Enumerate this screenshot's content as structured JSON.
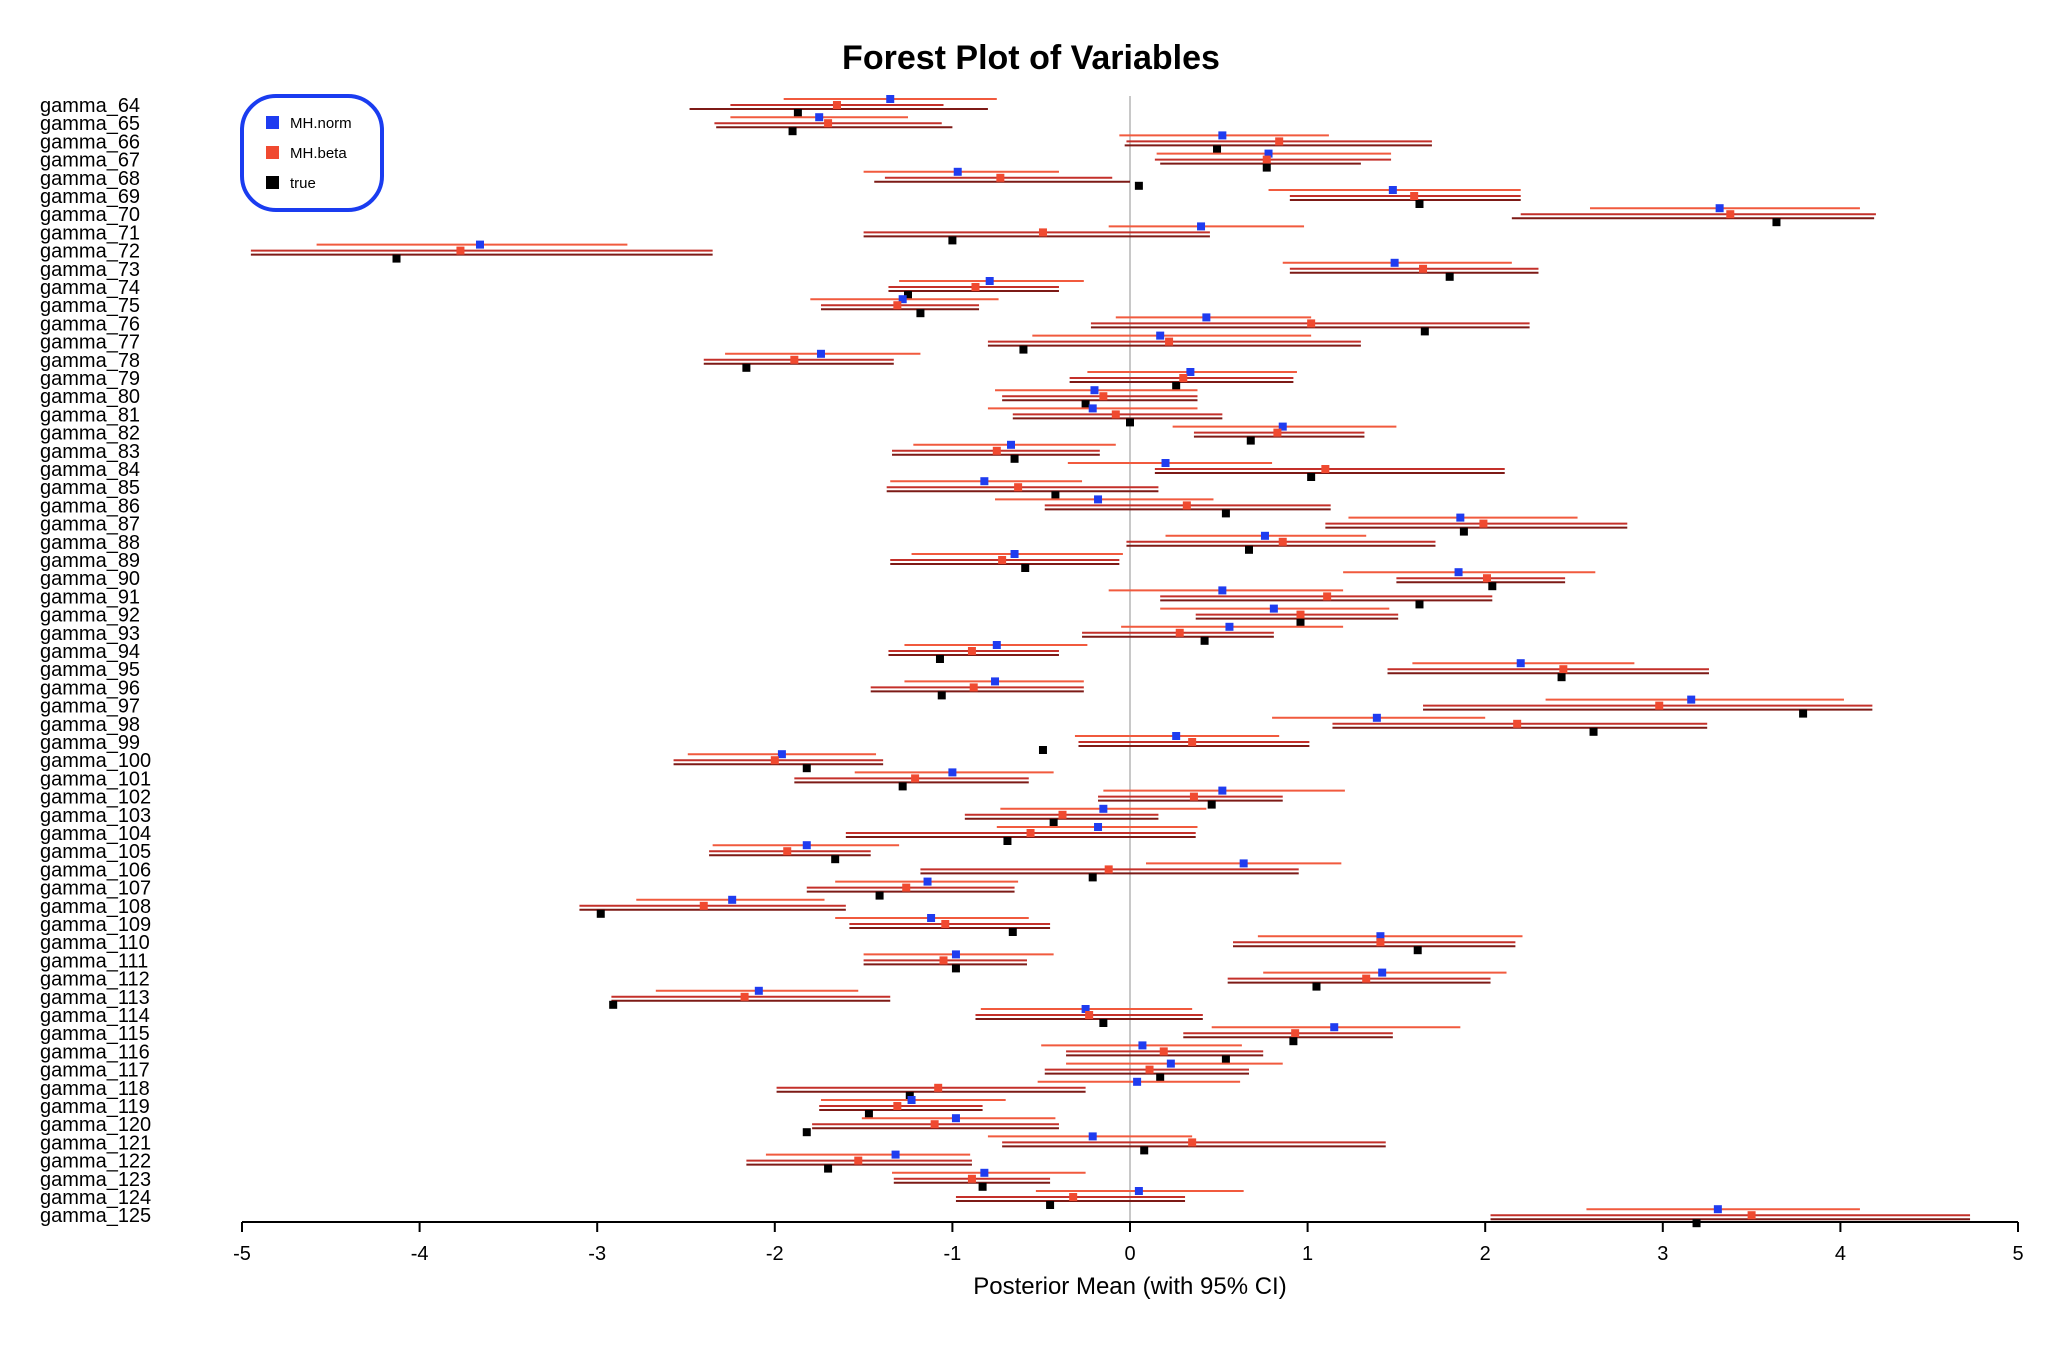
{
  "chart_data": {
    "type": "forest",
    "title": "Forest Plot of Variables",
    "xlabel": "Posterior Mean (with 95% CI)",
    "ylabel": "",
    "xlim": [
      -5,
      5
    ],
    "xticks": [
      -5,
      -4,
      -3,
      -2,
      -1,
      0,
      1,
      2,
      3,
      4,
      5
    ],
    "reference_line": 0,
    "legend_position": "top-left",
    "series": [
      {
        "name": "MH.norm",
        "color": "#1f3cf0"
      },
      {
        "name": "MH.beta",
        "color": "#f04a30"
      },
      {
        "name": "true",
        "color": "#000000"
      }
    ],
    "rows": [
      {
        "label": "gamma_64",
        "norm": -1.35,
        "norm_ci": [
          -1.95,
          -0.75
        ],
        "beta": -1.65,
        "beta_ci": [
          -2.25,
          -1.05
        ],
        "true": -1.87,
        "true_ci": [
          -2.48,
          -0.8
        ]
      },
      {
        "label": "gamma_65",
        "norm": -1.75,
        "norm_ci": [
          -2.25,
          -1.25
        ],
        "beta": -1.7,
        "beta_ci": [
          -2.34,
          -1.06
        ],
        "true": -1.9,
        "true_ci": [
          -2.33,
          -1.0
        ]
      },
      {
        "label": "gamma_66",
        "norm": 0.52,
        "norm_ci": [
          -0.06,
          1.12
        ],
        "beta": 0.84,
        "beta_ci": [
          -0.02,
          1.7
        ],
        "true": 0.49,
        "true_ci": [
          -0.03,
          1.7
        ]
      },
      {
        "label": "gamma_67",
        "norm": 0.78,
        "norm_ci": [
          0.15,
          1.47
        ],
        "beta": 0.77,
        "beta_ci": [
          0.14,
          1.47
        ],
        "true": 0.77,
        "true_ci": [
          0.17,
          1.3
        ]
      },
      {
        "label": "gamma_68",
        "norm": -0.97,
        "norm_ci": [
          -1.5,
          -0.4
        ],
        "beta": -0.73,
        "beta_ci": [
          -1.38,
          -0.1
        ],
        "true": 0.05,
        "true_ci": [
          -1.44,
          0.0
        ]
      },
      {
        "label": "gamma_69",
        "norm": 1.48,
        "norm_ci": [
          0.78,
          2.2
        ],
        "beta": 1.6,
        "beta_ci": [
          0.9,
          2.2
        ],
        "true": 1.63,
        "true_ci": [
          0.9,
          2.2
        ]
      },
      {
        "label": "gamma_70",
        "norm": 3.32,
        "norm_ci": [
          2.59,
          4.11
        ],
        "beta": 3.38,
        "beta_ci": [
          2.2,
          4.2
        ],
        "true": 3.64,
        "true_ci": [
          2.15,
          4.19
        ]
      },
      {
        "label": "gamma_71",
        "norm": 0.4,
        "norm_ci": [
          -0.12,
          0.98
        ],
        "beta": -0.49,
        "beta_ci": [
          -1.5,
          0.45
        ],
        "true": -1.0,
        "true_ci": [
          -1.5,
          0.45
        ]
      },
      {
        "label": "gamma_72",
        "norm": -3.66,
        "norm_ci": [
          -4.58,
          -2.83
        ],
        "beta": -3.77,
        "beta_ci": [
          -4.95,
          -2.35
        ],
        "true": -4.13,
        "true_ci": [
          -4.95,
          -2.35
        ]
      },
      {
        "label": "gamma_73",
        "norm": 1.49,
        "norm_ci": [
          0.86,
          2.15
        ],
        "beta": 1.65,
        "beta_ci": [
          0.9,
          2.3
        ],
        "true": 1.8,
        "true_ci": [
          0.9,
          2.3
        ]
      },
      {
        "label": "gamma_74",
        "norm": -0.79,
        "norm_ci": [
          -1.3,
          -0.26
        ],
        "beta": -0.87,
        "beta_ci": [
          -1.36,
          -0.4
        ],
        "true": -1.25,
        "true_ci": [
          -1.36,
          -0.4
        ]
      },
      {
        "label": "gamma_75",
        "norm": -1.28,
        "norm_ci": [
          -1.8,
          -0.74
        ],
        "beta": -1.31,
        "beta_ci": [
          -1.74,
          -0.85
        ],
        "true": -1.18,
        "true_ci": [
          -1.74,
          -0.85
        ]
      },
      {
        "label": "gamma_76",
        "norm": 0.43,
        "norm_ci": [
          -0.08,
          1.02
        ],
        "beta": 1.02,
        "beta_ci": [
          -0.22,
          2.25
        ],
        "true": 1.66,
        "true_ci": [
          -0.22,
          2.25
        ]
      },
      {
        "label": "gamma_77",
        "norm": 0.17,
        "norm_ci": [
          -0.55,
          1.02
        ],
        "beta": 0.22,
        "beta_ci": [
          -0.8,
          1.3
        ],
        "true": -0.6,
        "true_ci": [
          -0.8,
          1.3
        ]
      },
      {
        "label": "gamma_78",
        "norm": -1.74,
        "norm_ci": [
          -2.28,
          -1.18
        ],
        "beta": -1.89,
        "beta_ci": [
          -2.4,
          -1.33
        ],
        "true": -2.16,
        "true_ci": [
          -2.4,
          -1.33
        ]
      },
      {
        "label": "gamma_79",
        "norm": 0.34,
        "norm_ci": [
          -0.24,
          0.94
        ],
        "beta": 0.3,
        "beta_ci": [
          -0.34,
          0.92
        ],
        "true": 0.26,
        "true_ci": [
          -0.34,
          0.92
        ]
      },
      {
        "label": "gamma_80",
        "norm": -0.2,
        "norm_ci": [
          -0.76,
          0.38
        ],
        "beta": -0.15,
        "beta_ci": [
          -0.72,
          0.38
        ],
        "true": -0.25,
        "true_ci": [
          -0.72,
          0.38
        ]
      },
      {
        "label": "gamma_81",
        "norm": -0.21,
        "norm_ci": [
          -0.8,
          0.38
        ],
        "beta": -0.08,
        "beta_ci": [
          -0.66,
          0.52
        ],
        "true": 0.0,
        "true_ci": [
          -0.66,
          0.52
        ]
      },
      {
        "label": "gamma_82",
        "norm": 0.86,
        "norm_ci": [
          0.24,
          1.5
        ],
        "beta": 0.83,
        "beta_ci": [
          0.36,
          1.32
        ],
        "true": 0.68,
        "true_ci": [
          0.36,
          1.32
        ]
      },
      {
        "label": "gamma_83",
        "norm": -0.67,
        "norm_ci": [
          -1.22,
          -0.08
        ],
        "beta": -0.75,
        "beta_ci": [
          -1.34,
          -0.17
        ],
        "true": -0.65,
        "true_ci": [
          -1.34,
          -0.17
        ]
      },
      {
        "label": "gamma_84",
        "norm": 0.2,
        "norm_ci": [
          -0.35,
          0.8
        ],
        "beta": 1.1,
        "beta_ci": [
          0.14,
          2.11
        ],
        "true": 1.02,
        "true_ci": [
          0.14,
          2.11
        ]
      },
      {
        "label": "gamma_85",
        "norm": -0.82,
        "norm_ci": [
          -1.35,
          -0.27
        ],
        "beta": -0.63,
        "beta_ci": [
          -1.37,
          0.16
        ],
        "true": -0.42,
        "true_ci": [
          -1.37,
          0.16
        ]
      },
      {
        "label": "gamma_86",
        "norm": -0.18,
        "norm_ci": [
          -0.76,
          0.47
        ],
        "beta": 0.32,
        "beta_ci": [
          -0.48,
          1.13
        ],
        "true": 0.54,
        "true_ci": [
          -0.48,
          1.13
        ]
      },
      {
        "label": "gamma_87",
        "norm": 1.86,
        "norm_ci": [
          1.23,
          2.52
        ],
        "beta": 1.99,
        "beta_ci": [
          1.1,
          2.8
        ],
        "true": 1.88,
        "true_ci": [
          1.1,
          2.8
        ]
      },
      {
        "label": "gamma_88",
        "norm": 0.76,
        "norm_ci": [
          0.2,
          1.33
        ],
        "beta": 0.86,
        "beta_ci": [
          -0.02,
          1.72
        ],
        "true": 0.67,
        "true_ci": [
          -0.02,
          1.72
        ]
      },
      {
        "label": "gamma_89",
        "norm": -0.65,
        "norm_ci": [
          -1.23,
          -0.04
        ],
        "beta": -0.72,
        "beta_ci": [
          -1.35,
          -0.06
        ],
        "true": -0.59,
        "true_ci": [
          -1.35,
          -0.06
        ]
      },
      {
        "label": "gamma_90",
        "norm": 1.85,
        "norm_ci": [
          1.2,
          2.62
        ],
        "beta": 2.01,
        "beta_ci": [
          1.5,
          2.45
        ],
        "true": 2.04,
        "true_ci": [
          1.5,
          2.45
        ]
      },
      {
        "label": "gamma_91",
        "norm": 0.52,
        "norm_ci": [
          -0.12,
          1.2
        ],
        "beta": 1.11,
        "beta_ci": [
          0.17,
          2.04
        ],
        "true": 1.63,
        "true_ci": [
          0.17,
          2.04
        ]
      },
      {
        "label": "gamma_92",
        "norm": 0.81,
        "norm_ci": [
          0.17,
          1.46
        ],
        "beta": 0.96,
        "beta_ci": [
          0.37,
          1.51
        ],
        "true": 0.96,
        "true_ci": [
          0.37,
          1.51
        ]
      },
      {
        "label": "gamma_93",
        "norm": 0.56,
        "norm_ci": [
          -0.05,
          1.2
        ],
        "beta": 0.28,
        "beta_ci": [
          -0.27,
          0.81
        ],
        "true": 0.42,
        "true_ci": [
          -0.27,
          0.81
        ]
      },
      {
        "label": "gamma_94",
        "norm": -0.75,
        "norm_ci": [
          -1.27,
          -0.24
        ],
        "beta": -0.89,
        "beta_ci": [
          -1.36,
          -0.4
        ],
        "true": -1.07,
        "true_ci": [
          -1.36,
          -0.4
        ]
      },
      {
        "label": "gamma_95",
        "norm": 2.2,
        "norm_ci": [
          1.59,
          2.84
        ],
        "beta": 2.44,
        "beta_ci": [
          1.45,
          3.26
        ],
        "true": 2.43,
        "true_ci": [
          1.45,
          3.26
        ]
      },
      {
        "label": "gamma_96",
        "norm": -0.76,
        "norm_ci": [
          -1.27,
          -0.26
        ],
        "beta": -0.88,
        "beta_ci": [
          -1.46,
          -0.26
        ],
        "true": -1.06,
        "true_ci": [
          -1.46,
          -0.26
        ]
      },
      {
        "label": "gamma_97",
        "norm": 3.16,
        "norm_ci": [
          2.34,
          4.02
        ],
        "beta": 2.98,
        "beta_ci": [
          1.65,
          4.18
        ],
        "true": 3.79,
        "true_ci": [
          1.65,
          4.18
        ]
      },
      {
        "label": "gamma_98",
        "norm": 1.39,
        "norm_ci": [
          0.8,
          2.0
        ],
        "beta": 2.18,
        "beta_ci": [
          1.14,
          3.25
        ],
        "true": 2.61,
        "true_ci": [
          1.14,
          3.25
        ]
      },
      {
        "label": "gamma_99",
        "norm": 0.26,
        "norm_ci": [
          -0.31,
          0.84
        ],
        "beta": 0.35,
        "beta_ci": [
          -0.29,
          1.01
        ],
        "true": -0.49,
        "true_ci": [
          -0.29,
          1.01
        ]
      },
      {
        "label": "gamma_100",
        "norm": -1.96,
        "norm_ci": [
          -2.49,
          -1.43
        ],
        "beta": -2.0,
        "beta_ci": [
          -2.57,
          -1.39
        ],
        "true": -1.82,
        "true_ci": [
          -2.57,
          -1.39
        ]
      },
      {
        "label": "gamma_101",
        "norm": -1.0,
        "norm_ci": [
          -1.55,
          -0.43
        ],
        "beta": -1.21,
        "beta_ci": [
          -1.89,
          -0.57
        ],
        "true": -1.28,
        "true_ci": [
          -1.89,
          -0.57
        ]
      },
      {
        "label": "gamma_102",
        "norm": 0.52,
        "norm_ci": [
          -0.15,
          1.21
        ],
        "beta": 0.36,
        "beta_ci": [
          -0.18,
          0.86
        ],
        "true": 0.46,
        "true_ci": [
          -0.18,
          0.86
        ]
      },
      {
        "label": "gamma_103",
        "norm": -0.15,
        "norm_ci": [
          -0.73,
          0.43
        ],
        "beta": -0.38,
        "beta_ci": [
          -0.93,
          0.16
        ],
        "true": -0.43,
        "true_ci": [
          -0.93,
          0.16
        ]
      },
      {
        "label": "gamma_104",
        "norm": -0.18,
        "norm_ci": [
          -0.75,
          0.38
        ],
        "beta": -0.56,
        "beta_ci": [
          -1.6,
          0.37
        ],
        "true": -0.69,
        "true_ci": [
          -1.6,
          0.37
        ]
      },
      {
        "label": "gamma_105",
        "norm": -1.82,
        "norm_ci": [
          -2.35,
          -1.3
        ],
        "beta": -1.93,
        "beta_ci": [
          -2.37,
          -1.46
        ],
        "true": -1.66,
        "true_ci": [
          -2.37,
          -1.46
        ]
      },
      {
        "label": "gamma_106",
        "norm": 0.64,
        "norm_ci": [
          0.09,
          1.19
        ],
        "beta": -0.12,
        "beta_ci": [
          -1.18,
          0.95
        ],
        "true": -0.21,
        "true_ci": [
          -1.18,
          0.95
        ]
      },
      {
        "label": "gamma_107",
        "norm": -1.14,
        "norm_ci": [
          -1.66,
          -0.63
        ],
        "beta": -1.26,
        "beta_ci": [
          -1.82,
          -0.65
        ],
        "true": -1.41,
        "true_ci": [
          -1.82,
          -0.65
        ]
      },
      {
        "label": "gamma_108",
        "norm": -2.24,
        "norm_ci": [
          -2.78,
          -1.72
        ],
        "beta": -2.4,
        "beta_ci": [
          -3.1,
          -1.6
        ],
        "true": -2.98,
        "true_ci": [
          -3.1,
          -1.6
        ]
      },
      {
        "label": "gamma_109",
        "norm": -1.12,
        "norm_ci": [
          -1.66,
          -0.57
        ],
        "beta": -1.04,
        "beta_ci": [
          -1.58,
          -0.45
        ],
        "true": -0.66,
        "true_ci": [
          -1.58,
          -0.45
        ]
      },
      {
        "label": "gamma_110",
        "norm": 1.41,
        "norm_ci": [
          0.72,
          2.21
        ],
        "beta": 1.41,
        "beta_ci": [
          0.58,
          2.17
        ],
        "true": 1.62,
        "true_ci": [
          0.58,
          2.17
        ]
      },
      {
        "label": "gamma_111",
        "norm": -0.98,
        "norm_ci": [
          -1.5,
          -0.43
        ],
        "beta": -1.05,
        "beta_ci": [
          -1.5,
          -0.58
        ],
        "true": -0.98,
        "true_ci": [
          -1.5,
          -0.58
        ]
      },
      {
        "label": "gamma_112",
        "norm": 1.42,
        "norm_ci": [
          0.75,
          2.12
        ],
        "beta": 1.33,
        "beta_ci": [
          0.55,
          2.03
        ],
        "true": 1.05,
        "true_ci": [
          0.55,
          2.03
        ]
      },
      {
        "label": "gamma_113",
        "norm": -2.09,
        "norm_ci": [
          -2.67,
          -1.53
        ],
        "beta": -2.17,
        "beta_ci": [
          -2.92,
          -1.35
        ],
        "true": -2.91,
        "true_ci": [
          -2.92,
          -1.35
        ]
      },
      {
        "label": "gamma_114",
        "norm": -0.25,
        "norm_ci": [
          -0.84,
          0.35
        ],
        "beta": -0.23,
        "beta_ci": [
          -0.87,
          0.41
        ],
        "true": -0.15,
        "true_ci": [
          -0.87,
          0.41
        ]
      },
      {
        "label": "gamma_115",
        "norm": 1.15,
        "norm_ci": [
          0.46,
          1.86
        ],
        "beta": 0.93,
        "beta_ci": [
          0.3,
          1.48
        ],
        "true": 0.92,
        "true_ci": [
          0.3,
          1.48
        ]
      },
      {
        "label": "gamma_116",
        "norm": 0.07,
        "norm_ci": [
          -0.5,
          0.63
        ],
        "beta": 0.19,
        "beta_ci": [
          -0.36,
          0.75
        ],
        "true": 0.54,
        "true_ci": [
          -0.36,
          0.75
        ]
      },
      {
        "label": "gamma_117",
        "norm": 0.23,
        "norm_ci": [
          -0.36,
          0.86
        ],
        "beta": 0.11,
        "beta_ci": [
          -0.48,
          0.67
        ],
        "true": 0.17,
        "true_ci": [
          -0.48,
          0.67
        ]
      },
      {
        "label": "gamma_118",
        "norm": 0.04,
        "norm_ci": [
          -0.52,
          0.62
        ],
        "beta": -1.08,
        "beta_ci": [
          -1.99,
          -0.25
        ],
        "true": -1.24,
        "true_ci": [
          -1.99,
          -0.25
        ]
      },
      {
        "label": "gamma_119",
        "norm": -1.23,
        "norm_ci": [
          -1.74,
          -0.7
        ],
        "beta": -1.31,
        "beta_ci": [
          -1.75,
          -0.83
        ],
        "true": -1.47,
        "true_ci": [
          -1.75,
          -0.83
        ]
      },
      {
        "label": "gamma_120",
        "norm": -0.98,
        "norm_ci": [
          -1.51,
          -0.42
        ],
        "beta": -1.1,
        "beta_ci": [
          -1.79,
          -0.4
        ],
        "true": -1.82,
        "true_ci": [
          -1.79,
          -0.4
        ]
      },
      {
        "label": "gamma_121",
        "norm": -0.21,
        "norm_ci": [
          -0.8,
          0.35
        ],
        "beta": 0.35,
        "beta_ci": [
          -0.72,
          1.44
        ],
        "true": 0.08,
        "true_ci": [
          -0.72,
          1.44
        ]
      },
      {
        "label": "gamma_122",
        "norm": -1.32,
        "norm_ci": [
          -2.05,
          -0.9
        ],
        "beta": -1.53,
        "beta_ci": [
          -2.16,
          -0.89
        ],
        "true": -1.7,
        "true_ci": [
          -2.16,
          -0.89
        ]
      },
      {
        "label": "gamma_123",
        "norm": -0.82,
        "norm_ci": [
          -1.34,
          -0.25
        ],
        "beta": -0.89,
        "beta_ci": [
          -1.33,
          -0.45
        ],
        "true": -0.83,
        "true_ci": [
          -1.33,
          -0.45
        ]
      },
      {
        "label": "gamma_124",
        "norm": 0.05,
        "norm_ci": [
          -0.53,
          0.64
        ],
        "beta": -0.32,
        "beta_ci": [
          -0.98,
          0.31
        ],
        "true": -0.45,
        "true_ci": [
          -0.98,
          0.31
        ]
      },
      {
        "label": "gamma_125",
        "norm": 3.31,
        "norm_ci": [
          2.57,
          4.11
        ],
        "beta": 3.5,
        "beta_ci": [
          2.03,
          4.73
        ],
        "true": 3.19,
        "true_ci": [
          2.03,
          4.73
        ]
      }
    ]
  }
}
